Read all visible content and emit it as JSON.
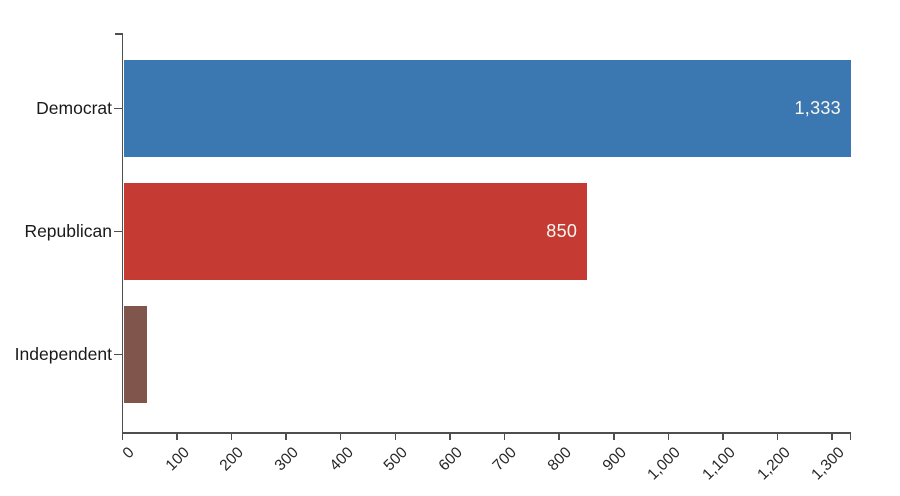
{
  "chart_data": {
    "type": "bar",
    "orientation": "horizontal",
    "title": "",
    "categories": [
      "Democrat",
      "Republican",
      "Independent"
    ],
    "values": [
      1333,
      850,
      44
    ],
    "value_labels": [
      "1,333",
      "850",
      ""
    ],
    "bar_colors": [
      "#3b77b0",
      "#c53b33",
      "#7f554c"
    ],
    "xlabel": "",
    "ylabel": "",
    "xlim": [
      0,
      1333
    ],
    "x_ticks": [
      0,
      100,
      200,
      300,
      400,
      500,
      600,
      700,
      800,
      900,
      1000,
      1100,
      1200,
      1300
    ],
    "x_tick_labels": [
      "0",
      "100",
      "200",
      "300",
      "400",
      "500",
      "600",
      "700",
      "800",
      "900",
      "1,000",
      "1,100",
      "1,200",
      "1,300"
    ],
    "grid": false,
    "legend": "none",
    "colors": {
      "background": "#ffffff",
      "axis": "#4f4f4f",
      "tick_text": "#262626",
      "category_text": "#1a1a1a",
      "value_text": "#faf7f2"
    }
  }
}
